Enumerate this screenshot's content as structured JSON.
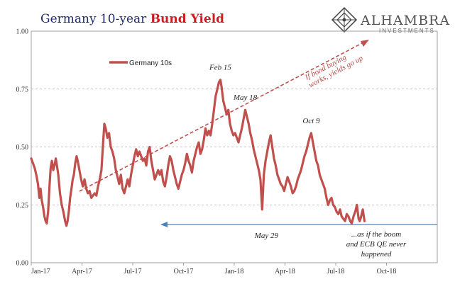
{
  "chart_data": {
    "type": "line",
    "title_prefix": "Germany 10-year ",
    "title_highlight": "Bund Yield",
    "xlabel": "",
    "ylabel": "",
    "ylim": [
      0,
      1
    ],
    "y_ticks": [
      "0.00",
      "0.25",
      "0.50",
      "0.75",
      "1.00"
    ],
    "x_ticks": [
      "Jan-17",
      "Apr-17",
      "Jul-17",
      "Oct-17",
      "Jan-18",
      "Apr-18",
      "Jul-18",
      "Oct-18"
    ],
    "x_tick_months": [
      0,
      3,
      6,
      9,
      12,
      15,
      18,
      21
    ],
    "x_range_months": [
      0,
      24
    ],
    "legend": {
      "label": "Germany 10s",
      "position": "top-left"
    },
    "grid": "horizontal-dashed",
    "series": [
      {
        "name": "Germany 10s",
        "color": "#c0504d",
        "points": [
          [
            0.0,
            0.45
          ],
          [
            0.1,
            0.43
          ],
          [
            0.2,
            0.41
          ],
          [
            0.3,
            0.38
          ],
          [
            0.4,
            0.34
          ],
          [
            0.48,
            0.28
          ],
          [
            0.55,
            0.32
          ],
          [
            0.62,
            0.27
          ],
          [
            0.7,
            0.24
          ],
          [
            0.78,
            0.2
          ],
          [
            0.85,
            0.18
          ],
          [
            0.92,
            0.17
          ],
          [
            1.0,
            0.22
          ],
          [
            1.08,
            0.33
          ],
          [
            1.15,
            0.41
          ],
          [
            1.22,
            0.44
          ],
          [
            1.3,
            0.4
          ],
          [
            1.37,
            0.42
          ],
          [
            1.45,
            0.45
          ],
          [
            1.52,
            0.42
          ],
          [
            1.6,
            0.38
          ],
          [
            1.7,
            0.3
          ],
          [
            1.8,
            0.25
          ],
          [
            1.9,
            0.22
          ],
          [
            2.0,
            0.18
          ],
          [
            2.08,
            0.16
          ],
          [
            2.15,
            0.18
          ],
          [
            2.22,
            0.22
          ],
          [
            2.3,
            0.28
          ],
          [
            2.38,
            0.32
          ],
          [
            2.45,
            0.36
          ],
          [
            2.52,
            0.38
          ],
          [
            2.6,
            0.43
          ],
          [
            2.68,
            0.46
          ],
          [
            2.75,
            0.44
          ],
          [
            2.85,
            0.4
          ],
          [
            2.95,
            0.36
          ],
          [
            3.05,
            0.33
          ],
          [
            3.15,
            0.36
          ],
          [
            3.25,
            0.32
          ],
          [
            3.35,
            0.3
          ],
          [
            3.45,
            0.31
          ],
          [
            3.55,
            0.28
          ],
          [
            3.65,
            0.29
          ],
          [
            3.75,
            0.3
          ],
          [
            3.85,
            0.29
          ],
          [
            3.95,
            0.33
          ],
          [
            4.05,
            0.36
          ],
          [
            4.15,
            0.4
          ],
          [
            4.25,
            0.52
          ],
          [
            4.32,
            0.6
          ],
          [
            4.4,
            0.58
          ],
          [
            4.5,
            0.54
          ],
          [
            4.6,
            0.56
          ],
          [
            4.7,
            0.5
          ],
          [
            4.8,
            0.48
          ],
          [
            4.9,
            0.45
          ],
          [
            5.0,
            0.4
          ],
          [
            5.1,
            0.37
          ],
          [
            5.2,
            0.34
          ],
          [
            5.3,
            0.38
          ],
          [
            5.4,
            0.32
          ],
          [
            5.5,
            0.3
          ],
          [
            5.6,
            0.33
          ],
          [
            5.7,
            0.36
          ],
          [
            5.8,
            0.33
          ],
          [
            5.9,
            0.38
          ],
          [
            6.0,
            0.42
          ],
          [
            6.1,
            0.46
          ],
          [
            6.2,
            0.49
          ],
          [
            6.3,
            0.46
          ],
          [
            6.4,
            0.48
          ],
          [
            6.5,
            0.46
          ],
          [
            6.6,
            0.44
          ],
          [
            6.7,
            0.45
          ],
          [
            6.8,
            0.42
          ],
          [
            6.9,
            0.48
          ],
          [
            7.0,
            0.5
          ],
          [
            7.1,
            0.44
          ],
          [
            7.2,
            0.4
          ],
          [
            7.3,
            0.36
          ],
          [
            7.4,
            0.38
          ],
          [
            7.5,
            0.4
          ],
          [
            7.6,
            0.38
          ],
          [
            7.7,
            0.4
          ],
          [
            7.8,
            0.35
          ],
          [
            7.9,
            0.33
          ],
          [
            8.0,
            0.37
          ],
          [
            8.1,
            0.42
          ],
          [
            8.2,
            0.46
          ],
          [
            8.3,
            0.44
          ],
          [
            8.4,
            0.4
          ],
          [
            8.5,
            0.37
          ],
          [
            8.6,
            0.34
          ],
          [
            8.7,
            0.32
          ],
          [
            8.8,
            0.35
          ],
          [
            8.9,
            0.38
          ],
          [
            9.0,
            0.4
          ],
          [
            9.1,
            0.43
          ],
          [
            9.2,
            0.47
          ],
          [
            9.3,
            0.44
          ],
          [
            9.4,
            0.42
          ],
          [
            9.5,
            0.39
          ],
          [
            9.6,
            0.44
          ],
          [
            9.7,
            0.47
          ],
          [
            9.8,
            0.5
          ],
          [
            9.9,
            0.52
          ],
          [
            10.0,
            0.47
          ],
          [
            10.1,
            0.49
          ],
          [
            10.2,
            0.53
          ],
          [
            10.3,
            0.58
          ],
          [
            10.4,
            0.55
          ],
          [
            10.5,
            0.57
          ],
          [
            10.6,
            0.55
          ],
          [
            10.7,
            0.6
          ],
          [
            10.8,
            0.66
          ],
          [
            10.9,
            0.72
          ],
          [
            11.0,
            0.75
          ],
          [
            11.1,
            0.78
          ],
          [
            11.18,
            0.79
          ],
          [
            11.25,
            0.76
          ],
          [
            11.35,
            0.7
          ],
          [
            11.45,
            0.67
          ],
          [
            11.55,
            0.64
          ],
          [
            11.65,
            0.66
          ],
          [
            11.75,
            0.6
          ],
          [
            11.85,
            0.57
          ],
          [
            11.95,
            0.55
          ],
          [
            12.05,
            0.56
          ],
          [
            12.15,
            0.54
          ],
          [
            12.25,
            0.52
          ],
          [
            12.35,
            0.55
          ],
          [
            12.45,
            0.58
          ],
          [
            12.55,
            0.62
          ],
          [
            12.65,
            0.66
          ],
          [
            12.75,
            0.63
          ],
          [
            12.85,
            0.6
          ],
          [
            12.95,
            0.56
          ],
          [
            13.05,
            0.53
          ],
          [
            13.15,
            0.49
          ],
          [
            13.25,
            0.46
          ],
          [
            13.35,
            0.43
          ],
          [
            13.45,
            0.4
          ],
          [
            13.55,
            0.36
          ],
          [
            13.65,
            0.23
          ],
          [
            13.75,
            0.38
          ],
          [
            13.85,
            0.44
          ],
          [
            13.95,
            0.48
          ],
          [
            14.05,
            0.52
          ],
          [
            14.15,
            0.55
          ],
          [
            14.25,
            0.5
          ],
          [
            14.35,
            0.45
          ],
          [
            14.45,
            0.42
          ],
          [
            14.55,
            0.38
          ],
          [
            14.65,
            0.36
          ],
          [
            14.75,
            0.34
          ],
          [
            14.85,
            0.33
          ],
          [
            14.95,
            0.31
          ],
          [
            15.05,
            0.34
          ],
          [
            15.15,
            0.37
          ],
          [
            15.25,
            0.35
          ],
          [
            15.35,
            0.33
          ],
          [
            15.45,
            0.3
          ],
          [
            15.55,
            0.31
          ],
          [
            15.65,
            0.33
          ],
          [
            15.75,
            0.36
          ],
          [
            15.85,
            0.38
          ],
          [
            15.95,
            0.4
          ],
          [
            16.05,
            0.43
          ],
          [
            16.15,
            0.46
          ],
          [
            16.25,
            0.48
          ],
          [
            16.35,
            0.51
          ],
          [
            16.45,
            0.54
          ],
          [
            16.55,
            0.56
          ],
          [
            16.65,
            0.52
          ],
          [
            16.75,
            0.48
          ],
          [
            16.85,
            0.44
          ],
          [
            16.95,
            0.42
          ],
          [
            17.05,
            0.38
          ],
          [
            17.15,
            0.36
          ],
          [
            17.25,
            0.34
          ],
          [
            17.35,
            0.32
          ],
          [
            17.45,
            0.28
          ],
          [
            17.55,
            0.25
          ],
          [
            17.65,
            0.27
          ],
          [
            17.75,
            0.28
          ],
          [
            17.85,
            0.25
          ],
          [
            17.95,
            0.24
          ],
          [
            18.05,
            0.22
          ],
          [
            18.15,
            0.21
          ],
          [
            18.25,
            0.23
          ],
          [
            18.35,
            0.2
          ],
          [
            18.45,
            0.19
          ],
          [
            18.55,
            0.18
          ],
          [
            18.65,
            0.21
          ],
          [
            18.75,
            0.2
          ],
          [
            18.85,
            0.18
          ],
          [
            18.95,
            0.17
          ],
          [
            19.05,
            0.2
          ],
          [
            19.15,
            0.22
          ],
          [
            19.25,
            0.25
          ],
          [
            19.35,
            0.19
          ],
          [
            19.42,
            0.18
          ],
          [
            19.5,
            0.2
          ],
          [
            19.6,
            0.23
          ],
          [
            19.7,
            0.18
          ]
        ]
      }
    ],
    "annotations": [
      {
        "text": "Feb 15",
        "month": 11.18,
        "value": 0.79
      },
      {
        "text": "May 18",
        "month": 12.65,
        "value": 0.66
      },
      {
        "text": "Oct 9",
        "month": 16.55,
        "value": 0.56
      },
      {
        "text": "May 29",
        "month": 13.65,
        "value": 0.23
      }
    ],
    "trend_arrow": {
      "text_line1": "If bond buying",
      "text_line2": "works, yields go up",
      "color": "#c0504d"
    },
    "blue_arrow": {
      "color": "#4f81bd"
    },
    "note_lines": [
      "...as if the boom",
      "and ECB QE never",
      "happened"
    ]
  },
  "logo": {
    "name": "ALHAMBRA",
    "sub": "INVESTMENTS"
  }
}
